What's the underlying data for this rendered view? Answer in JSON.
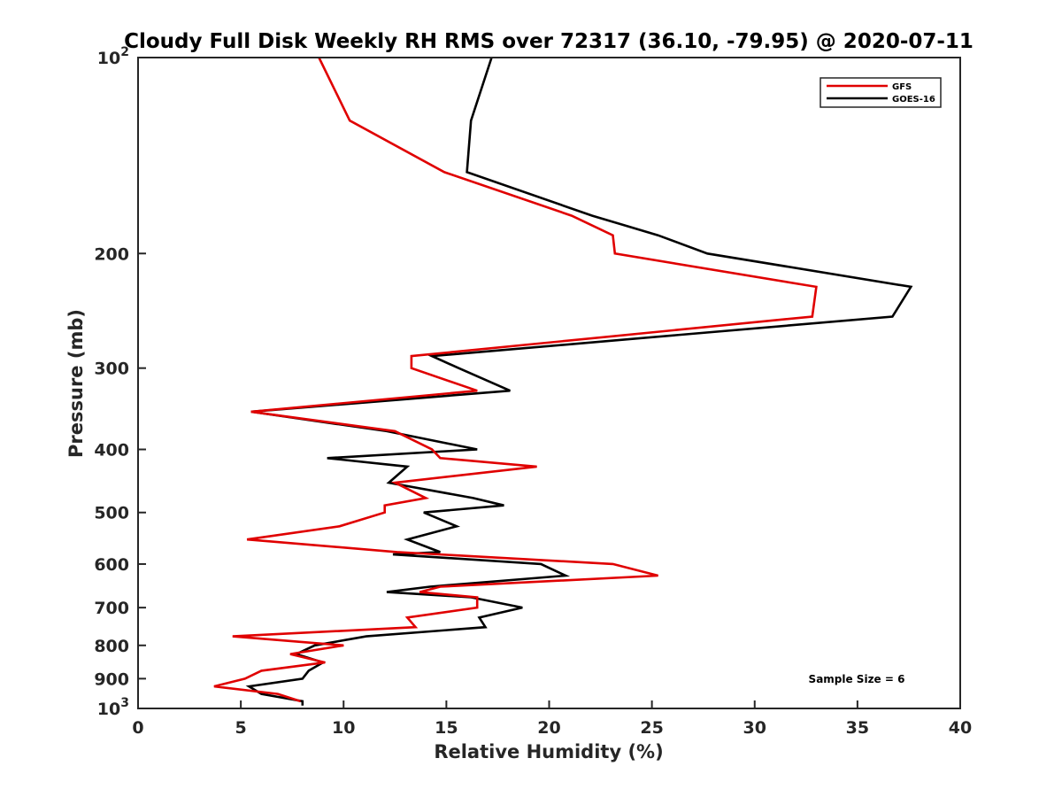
{
  "chart_data": {
    "type": "line",
    "title": "Cloudy Full Disk Weekly RH RMS over 72317 (36.10, -79.95) @ 2020-07-11",
    "xlabel": "Relative Humidity (%)",
    "ylabel": "Pressure (mb)",
    "xlim": [
      0,
      40
    ],
    "ylim": [
      100,
      1000
    ],
    "y_scale": "log",
    "y_reversed": true,
    "grid": false,
    "legend_position": "top-right",
    "x_ticks": [
      0,
      5,
      10,
      15,
      20,
      25,
      30,
      35,
      40
    ],
    "x_tick_labels": [
      "0",
      "5",
      "10",
      "15",
      "20",
      "25",
      "30",
      "35",
      "40"
    ],
    "y_ticks": [
      {
        "value": 100,
        "label": "10",
        "sup": "2"
      },
      {
        "value": 200,
        "label": "200",
        "sup": ""
      },
      {
        "value": 300,
        "label": "300",
        "sup": ""
      },
      {
        "value": 400,
        "label": "400",
        "sup": ""
      },
      {
        "value": 500,
        "label": "500",
        "sup": ""
      },
      {
        "value": 600,
        "label": "600",
        "sup": ""
      },
      {
        "value": 700,
        "label": "700",
        "sup": ""
      },
      {
        "value": 800,
        "label": "800",
        "sup": ""
      },
      {
        "value": 900,
        "label": "900",
        "sup": ""
      },
      {
        "value": 1000,
        "label": "10",
        "sup": "3"
      }
    ],
    "annotation": "Sample Size = 6",
    "series": [
      {
        "name": "GFS",
        "color": "#e00000",
        "points": [
          [
            8.8,
            100
          ],
          [
            10.3,
            125
          ],
          [
            14.9,
            150
          ],
          [
            21.1,
            175
          ],
          [
            23.1,
            187.5
          ],
          [
            23.2,
            200
          ],
          [
            33.0,
            225
          ],
          [
            32.8,
            250
          ],
          [
            13.3,
            287.5
          ],
          [
            13.3,
            300
          ],
          [
            16.5,
            325
          ],
          [
            5.5,
            350
          ],
          [
            12.5,
            375
          ],
          [
            14.3,
            400
          ],
          [
            14.7,
            412.5
          ],
          [
            19.4,
            425
          ],
          [
            12.5,
            450
          ],
          [
            14.0,
            475
          ],
          [
            12.0,
            487.5
          ],
          [
            12.0,
            500
          ],
          [
            9.8,
            525
          ],
          [
            5.3,
            550
          ],
          [
            12.6,
            575
          ],
          [
            23.1,
            600
          ],
          [
            25.3,
            625
          ],
          [
            14.7,
            650
          ],
          [
            13.7,
            662.5
          ],
          [
            16.5,
            675
          ],
          [
            16.5,
            700
          ],
          [
            13.1,
            725
          ],
          [
            13.5,
            750
          ],
          [
            4.6,
            775
          ],
          [
            10.0,
            800
          ],
          [
            7.4,
            825
          ],
          [
            9.1,
            850
          ],
          [
            6.0,
            875
          ],
          [
            5.2,
            900
          ],
          [
            3.7,
            925
          ],
          [
            6.8,
            950
          ],
          [
            7.9,
            975
          ]
        ]
      },
      {
        "name": "GOES-16",
        "color": "#000000",
        "points": [
          [
            17.2,
            100
          ],
          [
            16.2,
            125
          ],
          [
            16.0,
            150
          ],
          [
            22.1,
            175
          ],
          [
            25.3,
            187.5
          ],
          [
            27.7,
            200
          ],
          [
            37.6,
            225
          ],
          [
            36.7,
            250
          ],
          [
            14.3,
            287.5
          ],
          [
            15.6,
            300
          ],
          [
            18.1,
            325
          ],
          [
            5.5,
            350
          ],
          [
            12.1,
            375
          ],
          [
            16.5,
            400
          ],
          [
            9.2,
            412.5
          ],
          [
            13.1,
            425
          ],
          [
            12.2,
            450
          ],
          [
            16.3,
            475
          ],
          [
            17.8,
            487.5
          ],
          [
            13.9,
            500
          ],
          [
            15.5,
            525
          ],
          [
            13.1,
            550
          ],
          [
            14.7,
            575
          ],
          [
            12.4,
            580
          ],
          [
            19.6,
            600
          ],
          [
            20.8,
            625
          ],
          [
            14.2,
            650
          ],
          [
            12.1,
            662.5
          ],
          [
            16.2,
            675
          ],
          [
            18.7,
            700
          ],
          [
            16.6,
            725
          ],
          [
            16.9,
            750
          ],
          [
            11.1,
            775
          ],
          [
            8.6,
            800
          ],
          [
            7.7,
            825
          ],
          [
            9.0,
            850
          ],
          [
            8.3,
            875
          ],
          [
            8.0,
            900
          ],
          [
            5.4,
            925
          ],
          [
            6.0,
            950
          ],
          [
            8.0,
            975
          ],
          [
            8.0,
            990
          ]
        ]
      }
    ]
  }
}
